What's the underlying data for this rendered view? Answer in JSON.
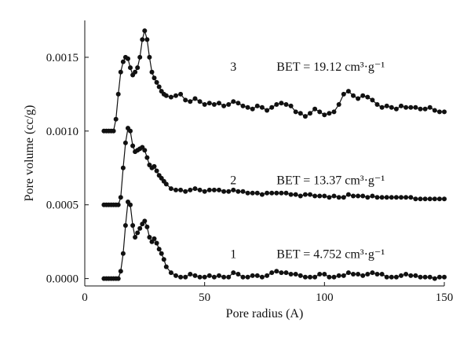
{
  "chart_data": {
    "type": "scatter",
    "xlabel": "Pore radius (A)",
    "ylabel": "Pore volume (cc/g)",
    "xlim": [
      0,
      150
    ],
    "ylim": [
      -5e-05,
      0.00175
    ],
    "x_ticks": [
      "0",
      "50",
      "100",
      "150"
    ],
    "y_ticks": [
      "0.0000",
      "0.0005",
      "0.0010",
      "0.0015"
    ],
    "x_tick_values": [
      0,
      50,
      100,
      150
    ],
    "y_tick_values": [
      0.0,
      0.0005,
      0.001,
      0.0015
    ],
    "series": [
      {
        "name": "1",
        "bet_label": "BET = 4.752 cm³·g⁻¹",
        "label_pos": [
          62,
          0.00014,
          80,
          0.00014
        ],
        "x": [
          8,
          9,
          10,
          11,
          12,
          13,
          14,
          15,
          16,
          17,
          18,
          19,
          20,
          21,
          22,
          23,
          24,
          25,
          26,
          27,
          28,
          29,
          30,
          31,
          32,
          33,
          34,
          36,
          38,
          40,
          42,
          44,
          46,
          48,
          50,
          52,
          54,
          56,
          58,
          60,
          62,
          64,
          66,
          68,
          70,
          72,
          74,
          76,
          78,
          80,
          82,
          84,
          86,
          88,
          90,
          92,
          94,
          96,
          98,
          100,
          102,
          104,
          106,
          108,
          110,
          112,
          114,
          116,
          118,
          120,
          122,
          124,
          126,
          128,
          130,
          132,
          134,
          136,
          138,
          140,
          142,
          144,
          146,
          148,
          150
        ],
        "y": [
          0,
          0,
          0,
          0,
          0,
          0,
          0,
          5e-05,
          0.00017,
          0.00036,
          0.00052,
          0.0005,
          0.00036,
          0.00028,
          0.00031,
          0.00034,
          0.00037,
          0.00039,
          0.00035,
          0.00028,
          0.00025,
          0.00027,
          0.00024,
          0.0002,
          0.00017,
          0.00013,
          8e-05,
          4e-05,
          2e-05,
          1e-05,
          1e-05,
          3e-05,
          2e-05,
          1e-05,
          1e-05,
          2e-05,
          1e-05,
          2e-05,
          1e-05,
          1e-05,
          4e-05,
          3e-05,
          1e-05,
          1e-05,
          2e-05,
          2e-05,
          1e-05,
          2e-05,
          4e-05,
          5e-05,
          4e-05,
          4e-05,
          3e-05,
          3e-05,
          2e-05,
          1e-05,
          1e-05,
          1e-05,
          3e-05,
          3e-05,
          1e-05,
          1e-05,
          2e-05,
          2e-05,
          4e-05,
          3e-05,
          3e-05,
          2e-05,
          3e-05,
          4e-05,
          3e-05,
          3e-05,
          1e-05,
          1e-05,
          1e-05,
          2e-05,
          3e-05,
          2e-05,
          2e-05,
          1e-05,
          1e-05,
          1e-05,
          0.0,
          1e-05,
          1e-05
        ]
      },
      {
        "name": "2",
        "bet_label": "BET = 13.37 cm³·g⁻¹",
        "label_pos": [
          62,
          0.00064,
          80,
          0.00064
        ],
        "x": [
          8,
          9,
          10,
          11,
          12,
          13,
          14,
          15,
          16,
          17,
          18,
          19,
          20,
          21,
          22,
          23,
          24,
          25,
          26,
          27,
          28,
          29,
          30,
          31,
          32,
          33,
          34,
          36,
          38,
          40,
          42,
          44,
          46,
          48,
          50,
          52,
          54,
          56,
          58,
          60,
          62,
          64,
          66,
          68,
          70,
          72,
          74,
          76,
          78,
          80,
          82,
          84,
          86,
          88,
          90,
          92,
          94,
          96,
          98,
          100,
          102,
          104,
          106,
          108,
          110,
          112,
          114,
          116,
          118,
          120,
          122,
          124,
          126,
          128,
          130,
          132,
          134,
          136,
          138,
          140,
          142,
          144,
          146,
          148,
          150
        ],
        "y": [
          0.0005,
          0.0005,
          0.0005,
          0.0005,
          0.0005,
          0.0005,
          0.0005,
          0.00055,
          0.00075,
          0.00092,
          0.00102,
          0.001,
          0.0009,
          0.00086,
          0.00087,
          0.00088,
          0.00089,
          0.00087,
          0.00082,
          0.00077,
          0.00075,
          0.00076,
          0.00073,
          0.0007,
          0.00068,
          0.00066,
          0.00064,
          0.00061,
          0.0006,
          0.0006,
          0.00059,
          0.0006,
          0.00061,
          0.0006,
          0.00059,
          0.0006,
          0.0006,
          0.0006,
          0.00059,
          0.00059,
          0.0006,
          0.00059,
          0.00059,
          0.00058,
          0.00058,
          0.00058,
          0.00057,
          0.00058,
          0.00058,
          0.00058,
          0.00058,
          0.00058,
          0.00057,
          0.00057,
          0.00056,
          0.00057,
          0.00057,
          0.00056,
          0.00056,
          0.00056,
          0.00055,
          0.00056,
          0.00055,
          0.00055,
          0.00057,
          0.00056,
          0.00056,
          0.00056,
          0.00055,
          0.00056,
          0.00055,
          0.00055,
          0.00055,
          0.00055,
          0.00055,
          0.00055,
          0.00055,
          0.00055,
          0.00054,
          0.00054,
          0.00054,
          0.00054,
          0.00054,
          0.00054,
          0.00054
        ]
      },
      {
        "name": "3",
        "bet_label": "BET = 19.12 cm³·g⁻¹",
        "label_pos": [
          62,
          0.00141,
          80,
          0.00141
        ],
        "x": [
          8,
          9,
          10,
          11,
          12,
          13,
          14,
          15,
          16,
          17,
          18,
          19,
          20,
          21,
          22,
          23,
          24,
          25,
          26,
          27,
          28,
          29,
          30,
          31,
          32,
          33,
          34,
          36,
          38,
          40,
          42,
          44,
          46,
          48,
          50,
          52,
          54,
          56,
          58,
          60,
          62,
          64,
          66,
          68,
          70,
          72,
          74,
          76,
          78,
          80,
          82,
          84,
          86,
          88,
          90,
          92,
          94,
          96,
          98,
          100,
          102,
          104,
          106,
          108,
          110,
          112,
          114,
          116,
          118,
          120,
          122,
          124,
          126,
          128,
          130,
          132,
          134,
          136,
          138,
          140,
          142,
          144,
          146,
          148,
          150
        ],
        "y": [
          0.001,
          0.001,
          0.001,
          0.001,
          0.001,
          0.00108,
          0.00125,
          0.0014,
          0.00147,
          0.0015,
          0.00149,
          0.00143,
          0.00138,
          0.0014,
          0.00143,
          0.0015,
          0.00162,
          0.00168,
          0.00162,
          0.0015,
          0.0014,
          0.00136,
          0.00133,
          0.0013,
          0.00127,
          0.00125,
          0.00124,
          0.00123,
          0.00124,
          0.00125,
          0.00121,
          0.0012,
          0.00122,
          0.0012,
          0.00118,
          0.00119,
          0.00118,
          0.00119,
          0.00117,
          0.00118,
          0.0012,
          0.00119,
          0.00117,
          0.00116,
          0.00115,
          0.00117,
          0.00116,
          0.00114,
          0.00116,
          0.00118,
          0.00119,
          0.00118,
          0.00117,
          0.00113,
          0.00112,
          0.0011,
          0.00112,
          0.00115,
          0.00113,
          0.00111,
          0.00112,
          0.00113,
          0.00118,
          0.00125,
          0.00127,
          0.00124,
          0.00122,
          0.00124,
          0.00123,
          0.00121,
          0.00118,
          0.00116,
          0.00117,
          0.00116,
          0.00115,
          0.00117,
          0.00116,
          0.00116,
          0.00116,
          0.00115,
          0.00115,
          0.00116,
          0.00114,
          0.00113,
          0.00113
        ]
      }
    ]
  }
}
